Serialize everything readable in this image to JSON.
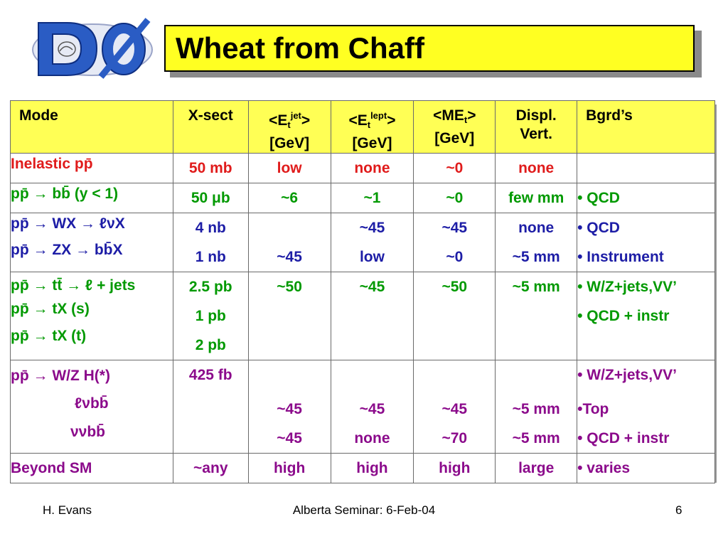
{
  "title": "Wheat from Chaff",
  "header": {
    "mode": "Mode",
    "xsect": "X-sect",
    "etjet_a": "<E",
    "etjet_sub": "t",
    "etjet_sup": "jet",
    "etjet_b": ">",
    "etjet_unit": "[GeV]",
    "etlept_a": "<E",
    "etlept_sub": "t",
    "etlept_sup": "lept",
    "etlept_b": ">",
    "etlept_unit": "[GeV]",
    "met_a": "<ME",
    "met_sub": "t",
    "met_b": ">",
    "met_unit": "[GeV]",
    "displ_1": "Displ.",
    "displ_2": "Vert.",
    "bgrd": "Bgrd’s"
  },
  "rows": {
    "inelastic": {
      "mode": "Inelastic  pp̄",
      "xsect": "50 mb",
      "etjet": "low",
      "etlept": "none",
      "met": "~0",
      "displ": "none",
      "bgrd": ""
    },
    "bb": {
      "mode": "pp̄ → bb̄ (y < 1)",
      "xsect": "50 μb",
      "etjet": "~6",
      "etlept": "~1",
      "met": "~0",
      "displ": "few mm",
      "bgrd": "• QCD"
    },
    "wz": {
      "mode_1": "pp̄ → WX → ℓνX",
      "mode_2": "pp̄ → ZX → bb̄X",
      "xsect_1": "4 nb",
      "xsect_2": "1 nb",
      "etjet_1": "",
      "etjet_2": "~45",
      "etlept_1": "~45",
      "etlept_2": "low",
      "met_1": "~45",
      "met_2": "~0",
      "displ_1": "none",
      "displ_2": "~5 mm",
      "bgrd_1": "• QCD",
      "bgrd_2": "• Instrument"
    },
    "top": {
      "mode_1": "pp̄ → tt̄ → ℓ + jets",
      "mode_2": "pp̄ → tX (s)",
      "mode_3": "pp̄ → tX (t)",
      "xsect_1": "2.5 pb",
      "xsect_2": "1 pb",
      "xsect_3": "2 pb",
      "etjet": "~50",
      "etlept": "~45",
      "met": "~50",
      "displ": "~5 mm",
      "bgrd_1": "• W/Z+jets,VV’",
      "bgrd_2": "• QCD + instr"
    },
    "higgs": {
      "mode_1": "pp̄ → W/Z H(*)",
      "mode_2": "ℓνbb̄",
      "mode_3": "ννbb̄",
      "xsect_1": "425 fb",
      "etjet_2": "~45",
      "etjet_3": "~45",
      "etlept_2": "~45",
      "etlept_3": "none",
      "met_2": "~45",
      "met_3": "~70",
      "displ_2": "~5 mm",
      "displ_3": "~5 mm",
      "bgrd_1": "• W/Z+jets,VV’",
      "bgrd_2": "•Top",
      "bgrd_3": "• QCD + instr"
    },
    "beyond": {
      "mode": "Beyond SM",
      "xsect": "~any",
      "etjet": "high",
      "etlept": "high",
      "met": "high",
      "displ": "large",
      "bgrd": "• varies"
    }
  },
  "footer": {
    "author": "H. Evans",
    "event": "Alberta Seminar: 6-Feb-04",
    "page": "6"
  },
  "colors": {
    "title_bg": "#ffff22",
    "header_bg": "#ffff55",
    "red": "#e01b1b",
    "green": "#009900",
    "blue": "#1d1da6",
    "purple": "#8b0a8b",
    "logo_blue": "#2a5cc4"
  }
}
